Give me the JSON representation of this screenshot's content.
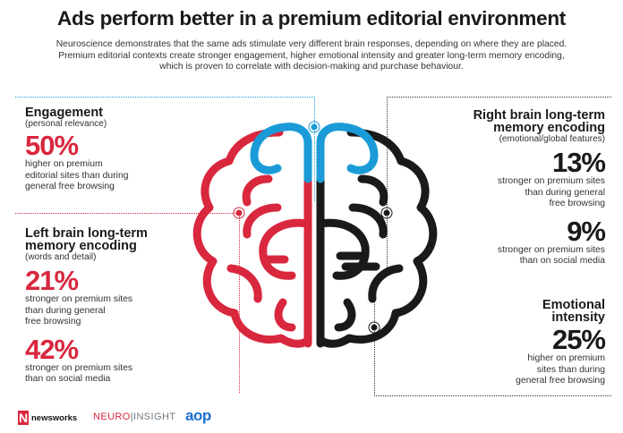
{
  "title": "Ads perform better in a premium editorial environment",
  "subtitle_lines": [
    "Neuroscience demonstrates that the same ads stimulate very different brain responses, depending on where they are placed.",
    "Premium editorial contexts create stronger engagement, higher emotional intensity and greater long-term memory encoding,",
    "which is proven to correlate with decision-making and purchase behaviour."
  ],
  "engagement": {
    "heading": "Engagement",
    "sub": "(personal relevance)",
    "pct": "50%",
    "desc": [
      "higher on premium",
      "editorial sites than during",
      "general free browsing"
    ]
  },
  "left_memory": {
    "heading": [
      "Left brain long-term",
      "memory encoding"
    ],
    "sub": "(words and detail)",
    "stats": [
      {
        "pct": "21%",
        "desc": [
          "stronger on premium sites",
          "than during general",
          "free browsing"
        ]
      },
      {
        "pct": "42%",
        "desc": [
          "stronger on premium sites",
          "than on social media"
        ]
      }
    ]
  },
  "right_memory": {
    "heading": [
      "Right brain long-term",
      "memory encoding"
    ],
    "sub": "(emotional/global features)",
    "stats": [
      {
        "pct": "13%",
        "desc": [
          "stronger on premium sites",
          "than during general",
          "free browsing"
        ]
      },
      {
        "pct": "9%",
        "desc": [
          "stronger on premium sites",
          "than on social media"
        ]
      }
    ]
  },
  "emotional": {
    "heading": [
      "Emotional",
      "intensity"
    ],
    "pct": "25%",
    "desc": [
      "higher on premium",
      "sites than during",
      "general free browsing"
    ]
  },
  "logos": {
    "newsworks_mark": "N",
    "newsworks": "newsworks",
    "neuro": "NEURO",
    "sep": "|",
    "insight": "INSIGHT",
    "aop": "aop"
  },
  "colors": {
    "red": "#d9273e",
    "blue": "#1a9bd7",
    "black": "#1a1a1a"
  }
}
